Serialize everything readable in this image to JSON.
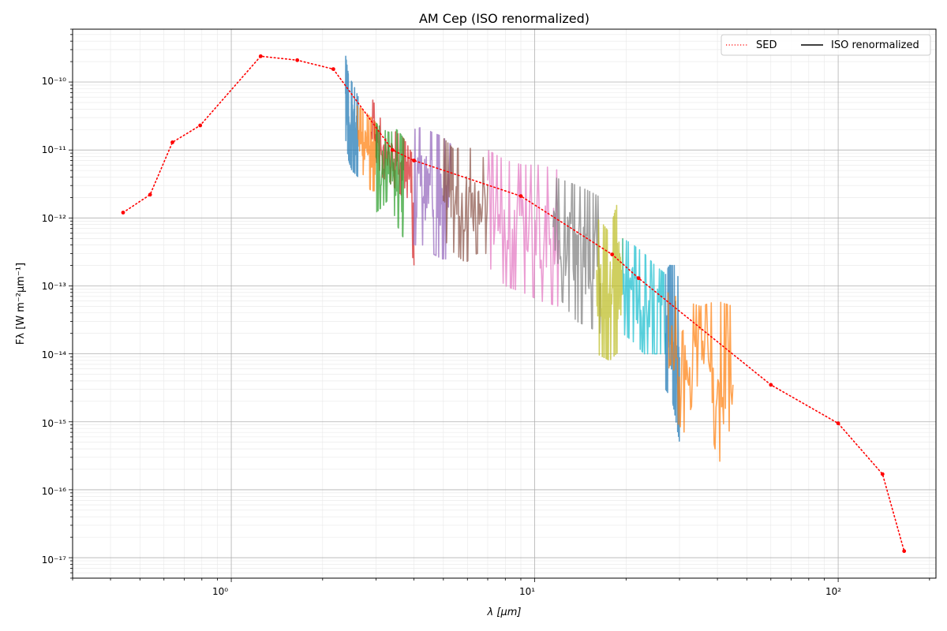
{
  "chart_data": {
    "type": "line",
    "title": "AM Cep (ISO renormalized)",
    "xlabel": "λ [μm]",
    "ylabel": "Fλ [W m⁻²μm⁻¹]",
    "xscale": "log",
    "yscale": "log",
    "xlim": [
      0.3,
      210
    ],
    "ylim": [
      5e-18,
      6e-10
    ],
    "grid": "major and minor",
    "legend": {
      "placement": "top-right",
      "ncol": 2,
      "entries": [
        "SED",
        "ISO renormalized"
      ]
    },
    "x_tick_labels": [
      "10⁰",
      "10¹",
      "10²"
    ],
    "y_tick_labels": [
      "10⁻¹⁷",
      "10⁻¹⁶",
      "10⁻¹⁵",
      "10⁻¹⁴",
      "10⁻¹³",
      "10⁻¹²",
      "10⁻¹¹",
      "10⁻¹⁰"
    ],
    "sed": {
      "name": "SED",
      "color": "#ff0000",
      "x": [
        0.44,
        0.54,
        0.64,
        0.79,
        1.25,
        1.65,
        2.17,
        3.4,
        4.0,
        9.0,
        18.0,
        22.0,
        60.0,
        100.0,
        140.0,
        165.0
      ],
      "y": [
        1.2e-12,
        2.2e-12,
        1.3e-11,
        2.3e-11,
        2.4e-10,
        2.1e-10,
        1.55e-10,
        1e-11,
        7e-12,
        2.1e-12,
        2.9e-13,
        1.3e-13,
        3.5e-15,
        9.5e-16,
        1.7e-16,
        1.25e-17
      ]
    },
    "iso_segments": [
      {
        "color": "#1f77b4",
        "x_range": [
          2.38,
          2.62
        ],
        "y_upper": [
          2.5e-10,
          1.2e-10,
          1e-10,
          8e-11,
          6e-11
        ],
        "y_lower": [
          1.5e-11,
          7e-12,
          5e-12,
          4.5e-12,
          4e-12
        ]
      },
      {
        "color": "#ff7f0e",
        "x_range": [
          2.6,
          3.0
        ],
        "y_upper": [
          4.5e-11,
          4e-11,
          3.5e-11,
          3e-11,
          2.5e-11
        ],
        "y_lower": [
          2e-11,
          5e-12,
          3e-12,
          2.5e-12,
          2.5e-12
        ]
      },
      {
        "color": "#d62728",
        "x_range": [
          2.9,
          4.0
        ],
        "y_upper": [
          6e-11,
          2.5e-11,
          2e-11,
          1.5e-11,
          8e-12
        ],
        "y_lower": [
          1e-11,
          4e-12,
          3e-12,
          2e-12,
          2e-13
        ]
      },
      {
        "color": "#2ca02c",
        "x_range": [
          3.0,
          3.7
        ],
        "y_upper": [
          2.5e-11,
          2e-11,
          1.8e-11,
          2e-11,
          1.5e-11
        ],
        "y_lower": [
          1.2e-12,
          1.5e-12,
          2e-12,
          8e-13,
          5e-13
        ]
      },
      {
        "color": "#9467bd",
        "x_range": [
          4.0,
          5.3
        ],
        "y_upper": [
          2e-11,
          2.2e-11,
          1.8e-11,
          1.6e-11,
          1.2e-11
        ],
        "y_lower": [
          4e-13,
          4e-13,
          3e-13,
          2.5e-13,
          2.5e-13
        ]
      },
      {
        "color": "#8c564b",
        "x_range": [
          5.0,
          7.0
        ],
        "y_upper": [
          1.5e-11,
          1e-11,
          1.2e-11,
          9e-12,
          7e-12
        ],
        "y_lower": [
          5e-13,
          3e-13,
          2.2e-13,
          3e-13,
          3e-13
        ]
      },
      {
        "color": "#e377c2",
        "x_range": [
          7.0,
          12.0
        ],
        "y_upper": [
          1e-11,
          7e-12,
          6e-12,
          6e-12,
          5e-12
        ],
        "y_lower": [
          2e-13,
          1e-13,
          8e-14,
          6e-14,
          5e-14
        ]
      },
      {
        "color": "#7f7f7f",
        "x_range": [
          11.5,
          16.5
        ],
        "y_upper": [
          4e-12,
          3.5e-12,
          3e-12,
          2.5e-12,
          2e-12
        ],
        "y_lower": [
          1e-13,
          5e-14,
          3e-14,
          2.5e-14,
          2e-14
        ]
      },
      {
        "color": "#bcbd22",
        "x_range": [
          16.0,
          19.5
        ],
        "y_upper": [
          1e-12,
          8e-13,
          6e-13,
          1.5e-12,
          2e-12
        ],
        "y_lower": [
          1e-14,
          9e-15,
          8e-15,
          1e-14,
          1.2e-14
        ]
      },
      {
        "color": "#17becf",
        "x_range": [
          19.5,
          27.0
        ],
        "y_upper": [
          5e-13,
          4e-13,
          3e-13,
          2e-13,
          1.5e-13
        ],
        "y_lower": [
          2e-14,
          1.5e-14,
          1e-14,
          1e-14,
          1e-14
        ]
      },
      {
        "color": "#1f77b4",
        "x_range": [
          27.0,
          30.0
        ],
        "y_upper": [
          1.5e-13,
          2e-13,
          2e-13,
          2e-13,
          1e-13
        ],
        "y_lower": [
          3e-15,
          2.5e-15,
          2e-15,
          1e-15,
          5e-16
        ]
      },
      {
        "color": "#ff7f0e",
        "x_range": [
          27.5,
          45.0
        ],
        "y_upper": [
          8e-14,
          6e-14,
          5e-14,
          6e-14,
          5e-14
        ],
        "y_lower": [
          1.5e-15,
          7e-16,
          5e-15,
          3e-16,
          1.5e-16
        ]
      }
    ]
  }
}
